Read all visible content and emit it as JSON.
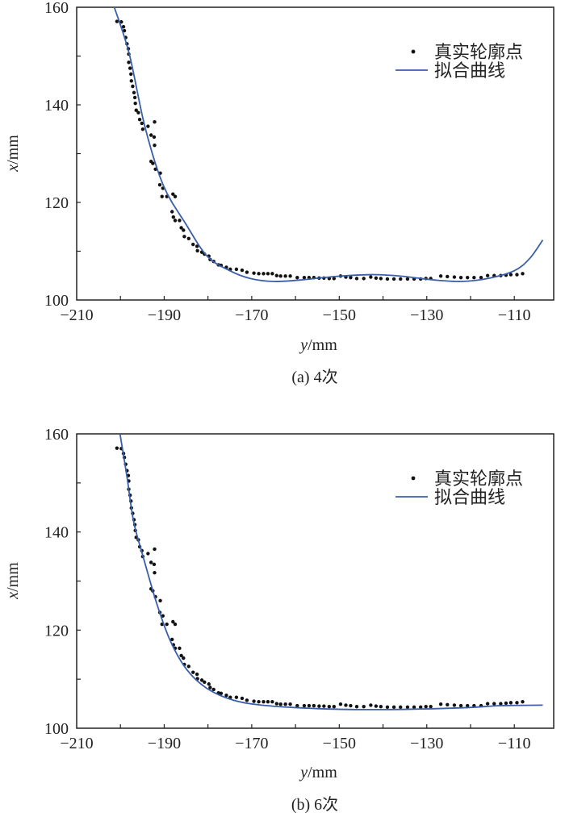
{
  "chart_data": [
    {
      "type": "scatter+line",
      "caption": "(a) 4次",
      "xlabel_italic": "y",
      "xlabel_unit": "/mm",
      "ylabel_italic": "x",
      "ylabel_unit": "/mm",
      "xlim": [
        -210,
        -101
      ],
      "ylim": [
        100,
        160
      ],
      "xticks": [
        -210,
        -190,
        -170,
        -150,
        -130,
        -110
      ],
      "yticks": [
        100,
        120,
        140,
        160
      ],
      "grid": false,
      "legend_position": "top-right",
      "colors": {
        "points": "#111111",
        "curve": "#3a5fa8"
      },
      "series": [
        {
          "name": "真实轮廓点",
          "kind": "scatter",
          "points": "shared_profile"
        },
        {
          "name": "拟合曲线",
          "kind": "line",
          "x": [
            -201.4,
            -198,
            -194.4,
            -190.2,
            -185,
            -180.2,
            -175,
            -170.3,
            -165,
            -158.9,
            -151.2,
            -142.8,
            -136,
            -128.3,
            -122.2,
            -116.1,
            -110,
            -106.5,
            -103.5
          ],
          "y": [
            160,
            150.5,
            135.5,
            123.5,
            115.5,
            109,
            106,
            104.4,
            103.8,
            104.1,
            104.8,
            105.2,
            104.9,
            104.1,
            103.8,
            104.4,
            106,
            108.5,
            112.3
          ]
        }
      ]
    },
    {
      "type": "scatter+line",
      "caption": "(b) 6次",
      "xlabel_italic": "y",
      "xlabel_unit": "/mm",
      "ylabel_italic": "x",
      "ylabel_unit": "/mm",
      "xlim": [
        -210,
        -101
      ],
      "ylim": [
        100,
        160
      ],
      "xticks": [
        -210,
        -190,
        -170,
        -150,
        -130,
        -110
      ],
      "yticks": [
        100,
        120,
        140,
        160
      ],
      "grid": false,
      "legend_position": "top-right",
      "colors": {
        "points": "#111111",
        "curve": "#3a5fa8"
      },
      "series": [
        {
          "name": "真实轮廓点",
          "kind": "scatter",
          "points": "shared_profile"
        },
        {
          "name": "拟合曲线",
          "kind": "line",
          "x": [
            -200.1,
            -198.5,
            -197,
            -194.7,
            -191.7,
            -188.6,
            -184.8,
            -180.2,
            -174.1,
            -166.5,
            -155,
            -143.6,
            -132.1,
            -120.7,
            -113,
            -103.5
          ],
          "y": [
            160,
            151.2,
            142.2,
            134.6,
            125.4,
            117.8,
            111.9,
            108.1,
            105.7,
            104.6,
            104,
            103.8,
            103.9,
            104.2,
            104.6,
            104.7
          ]
        }
      ]
    }
  ],
  "shared_profile": {
    "x": [
      -200.8,
      -199.8,
      -199.3,
      -199.1,
      -198.8,
      -198.5,
      -198.2,
      -198.1,
      -198.1,
      -197.8,
      -197.6,
      -197.5,
      -197.2,
      -196.9,
      -196.7,
      -196.6,
      -196.4,
      -195.9,
      -195.6,
      -195.1,
      -194.9,
      -193.7,
      -193,
      -192.3,
      -192.2,
      -192.2,
      -193,
      -192.6,
      -192,
      -190.9,
      -191,
      -190.3,
      -190.5,
      -189.4,
      -188,
      -187.5,
      -188.2,
      -187.9,
      -187.5,
      -186.5,
      -186.1,
      -185.6,
      -185.4,
      -184.4,
      -183.4,
      -182.5,
      -182.4,
      -181.4,
      -180.8,
      -179.8,
      -179.5,
      -178.7,
      -177.6,
      -177,
      -175.8,
      -174.9,
      -173.5,
      -172.2,
      -171.1,
      -169.5,
      -168.4,
      -167.3,
      -166.3,
      -165.3,
      -164.3,
      -163.4,
      -162.3,
      -161.2,
      -159.6,
      -158,
      -156.9,
      -155.8,
      -154.6,
      -153.5,
      -152.3,
      -151.2,
      -149.7,
      -148.5,
      -147.4,
      -146,
      -144.4,
      -142.8,
      -141.6,
      -140.5,
      -139,
      -137.5,
      -136,
      -134.4,
      -132.9,
      -131.4,
      -130.2,
      -129.1,
      -126.8,
      -125.3,
      -123.7,
      -122.2,
      -120.7,
      -119.2,
      -117.6,
      -116.1,
      -114.6,
      -113.1,
      -111.9,
      -110.8,
      -109.4,
      -108.1
    ],
    "y": [
      157.1,
      157,
      156,
      155.2,
      153.8,
      152.5,
      151.5,
      150.4,
      148.7,
      147.5,
      146.3,
      144.9,
      143.8,
      142.5,
      141.5,
      140.3,
      138.9,
      138.4,
      137,
      136.2,
      135,
      135.6,
      133.8,
      133.4,
      136.5,
      131.7,
      128.4,
      128,
      126.8,
      126,
      123.6,
      122.9,
      121.2,
      121.2,
      121.7,
      121.2,
      118.1,
      117,
      116.3,
      116.3,
      114.8,
      114.3,
      113,
      112.6,
      111.4,
      111,
      110.1,
      109.8,
      109.4,
      109,
      108.3,
      107.9,
      107.2,
      107.1,
      106.7,
      106.3,
      106.3,
      106.1,
      105.7,
      105.5,
      105.4,
      105.4,
      105.4,
      105.4,
      105,
      104.9,
      104.9,
      104.9,
      104.6,
      104.6,
      104.6,
      104.6,
      104.5,
      104.5,
      104.4,
      104.4,
      104.9,
      104.7,
      104.6,
      104.4,
      104.4,
      104.7,
      104.5,
      104.4,
      104.3,
      104.3,
      104.3,
      104.3,
      104.3,
      104.3,
      104.4,
      104.4,
      104.9,
      104.8,
      104.7,
      104.6,
      104.6,
      104.6,
      104.6,
      105,
      105,
      105,
      105.1,
      105.2,
      105.2,
      105.4
    ]
  }
}
